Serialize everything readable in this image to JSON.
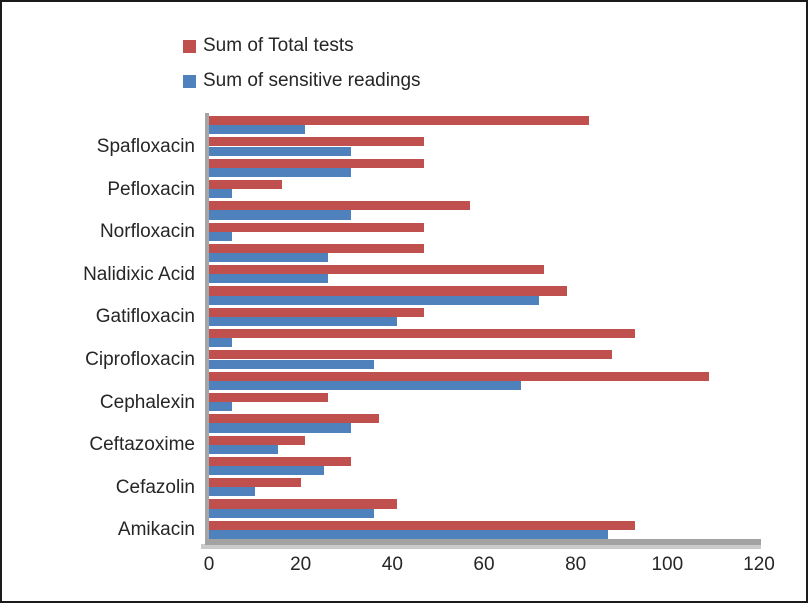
{
  "chart_data": {
    "type": "bar",
    "orientation": "horizontal",
    "legend_position": "top",
    "grid": false,
    "series": [
      {
        "name": "Sum of Total tests",
        "color": "#C0504D"
      },
      {
        "name": "Sum of sensitive readings",
        "color": "#4F81BD"
      }
    ],
    "rows_top_to_bottom": [
      {
        "label": "",
        "values": [
          83,
          21
        ]
      },
      {
        "label": "Spafloxacin",
        "values": [
          47,
          31
        ]
      },
      {
        "label": "",
        "values": [
          47,
          31
        ]
      },
      {
        "label": "Pefloxacin",
        "values": [
          16,
          5
        ]
      },
      {
        "label": "",
        "values": [
          57,
          31
        ]
      },
      {
        "label": "Norfloxacin",
        "values": [
          47,
          5
        ]
      },
      {
        "label": "",
        "values": [
          47,
          26
        ]
      },
      {
        "label": "Nalidixic Acid",
        "values": [
          73,
          26
        ]
      },
      {
        "label": "",
        "values": [
          78,
          72
        ]
      },
      {
        "label": "Gatifloxacin",
        "values": [
          47,
          41
        ]
      },
      {
        "label": "",
        "values": [
          93,
          5
        ]
      },
      {
        "label": "Ciprofloxacin",
        "values": [
          88,
          36
        ]
      },
      {
        "label": "",
        "values": [
          109,
          68
        ]
      },
      {
        "label": "Cephalexin",
        "values": [
          26,
          5
        ]
      },
      {
        "label": "",
        "values": [
          37,
          31
        ]
      },
      {
        "label": "Ceftazoxime",
        "values": [
          21,
          15
        ]
      },
      {
        "label": "",
        "values": [
          31,
          25
        ]
      },
      {
        "label": "Cefazolin",
        "values": [
          20,
          10
        ]
      },
      {
        "label": "",
        "values": [
          41,
          36
        ]
      },
      {
        "label": "Amikacin",
        "values": [
          93,
          87
        ]
      }
    ],
    "xlabel": "",
    "ylabel": "",
    "x_axis": {
      "min": 0,
      "max": 120,
      "tick_step": 20,
      "ticks": [
        0,
        20,
        40,
        60,
        80,
        100,
        120
      ]
    },
    "axis_color": "#A5A5A5",
    "text_color": "#262626"
  }
}
